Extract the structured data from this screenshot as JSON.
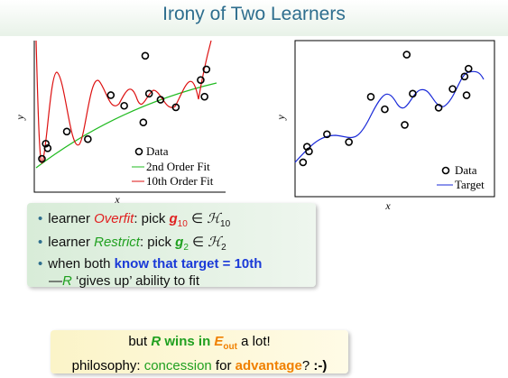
{
  "title": "Irony of Two Learners",
  "plots": [
    {
      "xlabel": "x",
      "ylabel": "y",
      "legend": [
        "Data",
        "2nd Order Fit",
        "10th Order Fit"
      ],
      "points": {
        "x": [
          0.04,
          0.06,
          0.07,
          0.17,
          0.28,
          0.4,
          0.47,
          0.57,
          0.58,
          0.6,
          0.66,
          0.74,
          0.87,
          0.89,
          0.9
        ],
        "y": [
          0.22,
          0.32,
          0.29,
          0.4,
          0.35,
          0.64,
          0.57,
          0.46,
          0.9,
          0.65,
          0.61,
          0.56,
          0.74,
          0.63,
          0.81
        ]
      }
    },
    {
      "xlabel": "x",
      "ylabel": "y",
      "legend": [
        "Data",
        "Target"
      ],
      "points": {
        "x": [
          0.04,
          0.06,
          0.07,
          0.16,
          0.27,
          0.38,
          0.45,
          0.55,
          0.56,
          0.59,
          0.72,
          0.79,
          0.85,
          0.87,
          0.86
        ],
        "y": [
          0.22,
          0.32,
          0.29,
          0.4,
          0.35,
          0.64,
          0.56,
          0.46,
          0.91,
          0.66,
          0.57,
          0.69,
          0.77,
          0.82,
          0.65
        ]
      }
    }
  ],
  "bullets": [
    [
      "learner ",
      "Overfit",
      ": pick ",
      "g",
      "10",
      " ∈ ",
      "ℋ",
      "10"
    ],
    [
      "learner ",
      "Restrict",
      ": pick ",
      "g",
      "2",
      " ∈ ",
      "ℋ",
      "2"
    ],
    [
      "when both ",
      "know that target = ",
      "10th",
      "—",
      "R",
      " ‘gives up’ ability to fit"
    ]
  ],
  "box": [
    [
      "but ",
      "R",
      " ",
      "wins in ",
      "E",
      "out",
      " a lot!"
    ],
    [
      "philosophy: ",
      "concession",
      " for ",
      "advantage",
      "? ",
      ":-)"
    ]
  ]
}
